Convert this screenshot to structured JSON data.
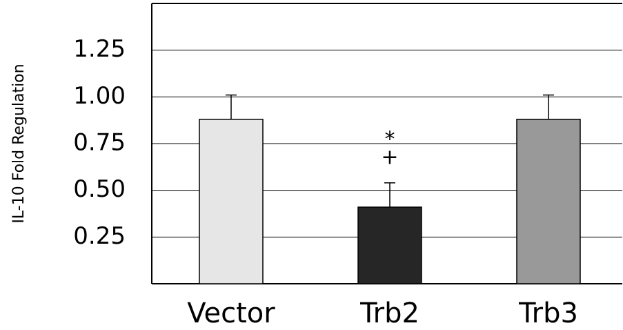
{
  "chart_data": {
    "type": "bar",
    "y_label": "IL-10 Fold Regulation",
    "categories": [
      "Vector",
      "Trb2",
      "Trb3"
    ],
    "values": [
      0.88,
      0.41,
      0.88
    ],
    "errors": [
      0.13,
      0.13,
      0.13
    ],
    "colors": [
      "#e6e6e6",
      "#262626",
      "#999999"
    ],
    "annotations": [
      {
        "category": 1,
        "texts": [
          "*",
          "+"
        ]
      }
    ],
    "ylim": [
      0,
      1.5
    ],
    "yticks": [
      0.25,
      {
        "value": 0.5,
        "label": "0.50"
      },
      0.75,
      {
        "value": 1,
        "label": "1.00"
      },
      1.25
    ],
    "grid": true
  }
}
